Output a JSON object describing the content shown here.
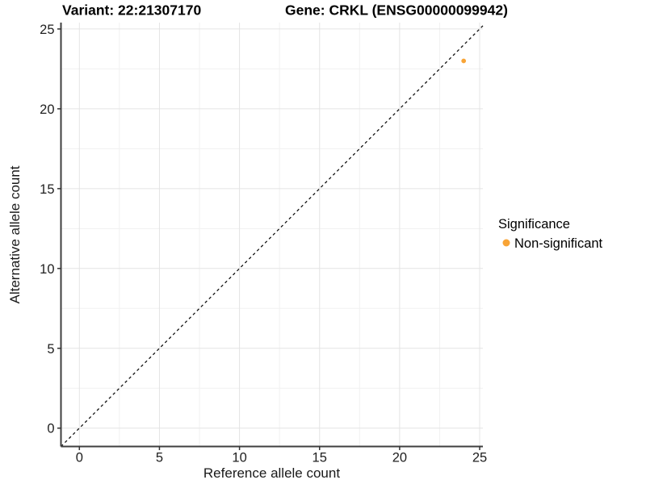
{
  "chart_data": {
    "type": "scatter",
    "title_left": "Variant: 22:21307170",
    "title_right": "Gene: CRKL (ENSG00000099942)",
    "xlabel": "Reference allele count",
    "ylabel": "Alternative allele count",
    "x_ticks": [
      0,
      5,
      10,
      15,
      20,
      25
    ],
    "y_ticks": [
      0,
      5,
      10,
      15,
      20,
      25
    ],
    "x_minor_ticks": [
      2.5,
      7.5,
      12.5,
      17.5,
      22.5
    ],
    "y_minor_ticks": [
      2.5,
      7.5,
      12.5,
      17.5,
      22.5
    ],
    "xlim": [
      -1.15,
      25.2
    ],
    "ylim": [
      -1.15,
      25.4
    ],
    "grid": "major and minor gridlines, light gray, white panel background",
    "identity_line": {
      "style": "dashed",
      "color": "#111111",
      "from": [
        -1.15,
        -1.15
      ],
      "to": [
        25.2,
        25.2
      ]
    },
    "series": [
      {
        "name": "Non-significant",
        "color": "#F8A436",
        "points": [
          {
            "x": 24,
            "y": 23
          }
        ]
      }
    ],
    "legend": {
      "position": "right",
      "title": "Significance",
      "items": [
        {
          "label": "Non-significant",
          "color": "#F8A436"
        }
      ]
    },
    "colors": {
      "background": "#FFFFFF",
      "axis": "#3F3F3F",
      "tick": "#333333",
      "tick_label": "#212121",
      "title": "#000000",
      "axis_label": "#1A1A1A",
      "grid_major": "#E4E4E4",
      "grid_minor": "#F1F1F1",
      "point": "#F8A436"
    }
  }
}
